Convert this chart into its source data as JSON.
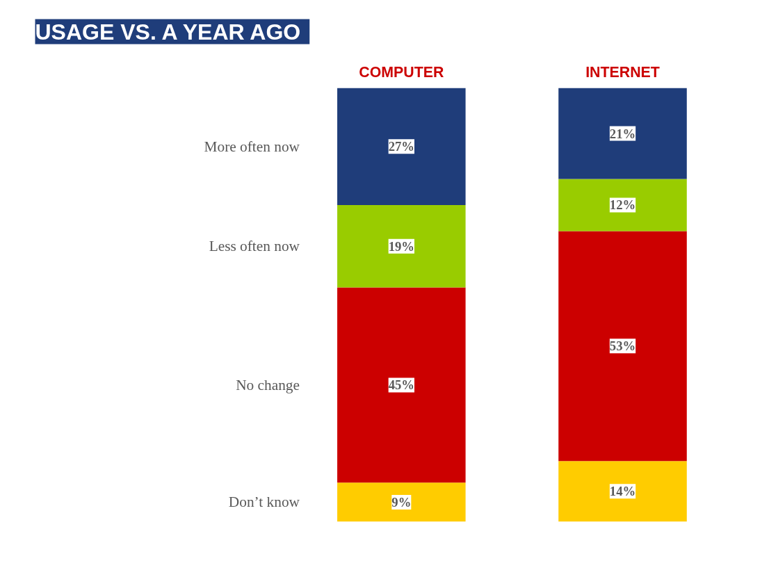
{
  "chart_data": {
    "type": "bar",
    "title": "USAGE VS. A YEAR  AGO",
    "categories": [
      "COMPUTER",
      "INTERNET"
    ],
    "stacked": true,
    "ylim": [
      0,
      100
    ],
    "tick_labels": "x",
    "legend": false,
    "grid": false,
    "series": [
      {
        "name": "Don’t know",
        "color": "#ffcc00",
        "values": [
          9,
          14
        ],
        "value_labels": [
          "9%",
          "14%"
        ]
      },
      {
        "name": "No change",
        "color": "#cc0000",
        "values": [
          45,
          53
        ],
        "value_labels": [
          "45%",
          "53%"
        ]
      },
      {
        "name": "Less often now",
        "color": "#99cc00",
        "values": [
          19,
          12
        ],
        "value_labels": [
          "19%",
          "12%"
        ]
      },
      {
        "name": "More often now",
        "color": "#1f3d7a",
        "values": [
          27,
          21
        ],
        "value_labels": [
          "27%",
          "21%"
        ]
      }
    ]
  }
}
